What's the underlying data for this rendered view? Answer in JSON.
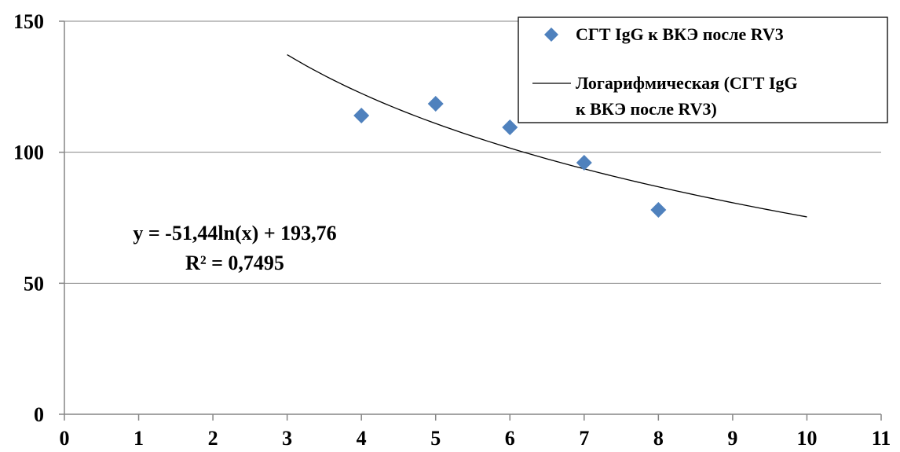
{
  "chart_data": {
    "type": "scatter",
    "title": "",
    "xlabel": "",
    "ylabel": "",
    "xlim": [
      0,
      11
    ],
    "ylim": [
      0,
      150
    ],
    "x_ticks": [
      "0",
      "1",
      "2",
      "3",
      "4",
      "5",
      "6",
      "7",
      "8",
      "9",
      "10",
      "11"
    ],
    "y_ticks": [
      "0",
      "50",
      "100",
      "150"
    ],
    "grid": "horizontal",
    "legend_position": "top-right",
    "marker_color": "#4F81BD",
    "series": [
      {
        "name": "СГТ IgG к ВКЭ после RV3",
        "marker": "diamond",
        "points": [
          {
            "x": 4,
            "y": 114
          },
          {
            "x": 5,
            "y": 118.5
          },
          {
            "x": 6,
            "y": 109.5
          },
          {
            "x": 7,
            "y": 96
          },
          {
            "x": 8,
            "y": 78
          }
        ]
      }
    ],
    "trendline": {
      "type": "logarithmic",
      "legend_lines": [
        "Логарифмическая (СГТ IgG",
        "к ВКЭ после RV3)"
      ],
      "a": -51.44,
      "b": 193.76,
      "x_range": [
        3,
        10
      ],
      "equation_text": "y = -51,44ln(x) + 193,76",
      "r2_text": "R² = 0,7495"
    }
  }
}
